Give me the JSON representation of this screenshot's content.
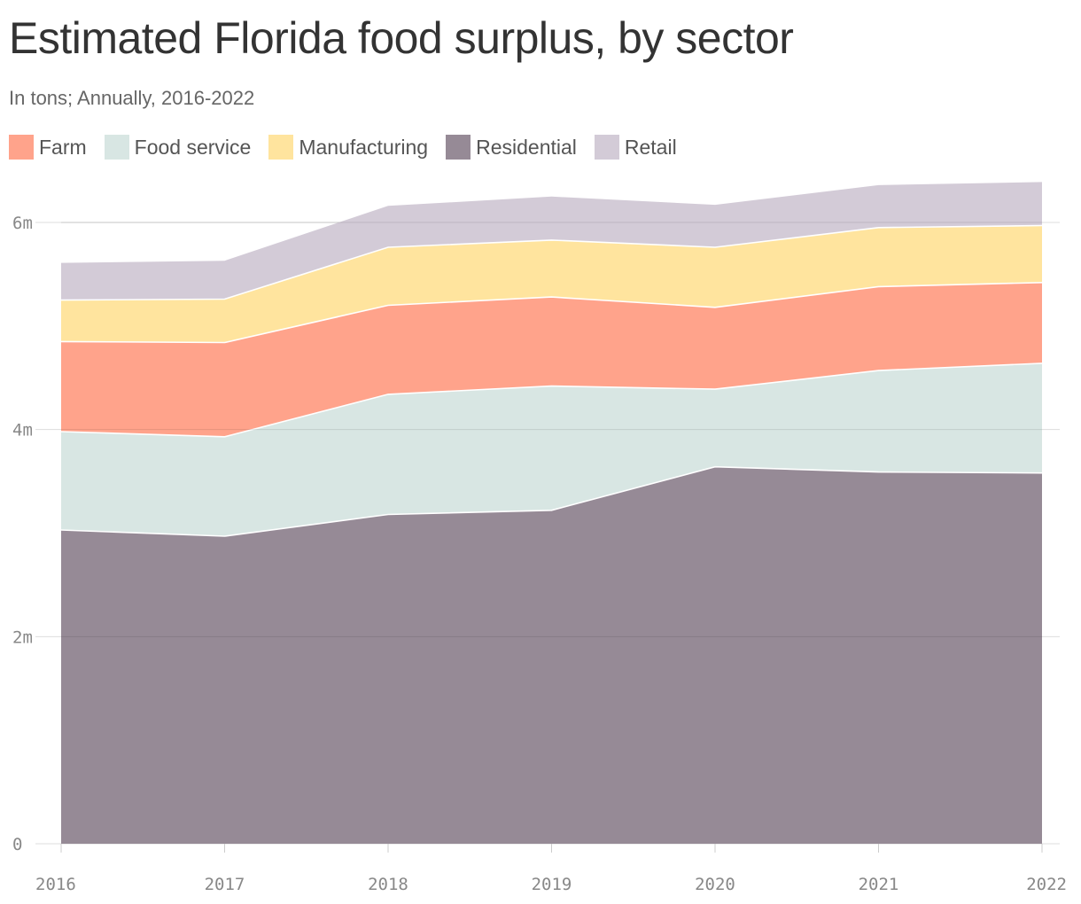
{
  "chart_data": {
    "type": "area",
    "stacked": true,
    "title": "Estimated Florida food surplus, by sector",
    "subtitle": "In tons; Annually, 2016-2022",
    "x": [
      "2016",
      "2017",
      "2018",
      "2019",
      "2020",
      "2021",
      "2022"
    ],
    "ylim": [
      0,
      6400000
    ],
    "y_ticks": [
      0,
      2000000,
      4000000,
      6000000
    ],
    "y_tick_labels": [
      "0",
      "2m",
      "4m",
      "6m"
    ],
    "grid": true,
    "legend_position": "top-left",
    "stack_order": [
      "Residential",
      "Food service",
      "Farm",
      "Manufacturing",
      "Retail"
    ],
    "series": [
      {
        "name": "Farm",
        "color": "#ffa38b",
        "values": [
          870000,
          910000,
          860000,
          860000,
          790000,
          810000,
          780000
        ]
      },
      {
        "name": "Food service",
        "color": "#d8e6e3",
        "values": [
          950000,
          960000,
          1160000,
          1200000,
          750000,
          980000,
          1060000
        ]
      },
      {
        "name": "Manufacturing",
        "color": "#ffe49e",
        "values": [
          400000,
          420000,
          560000,
          550000,
          580000,
          570000,
          550000
        ]
      },
      {
        "name": "Residential",
        "color": "#968a96",
        "values": [
          3030000,
          2970000,
          3180000,
          3220000,
          3640000,
          3590000,
          3580000
        ]
      },
      {
        "name": "Retail",
        "color": "#d3cbd7",
        "values": [
          360000,
          370000,
          400000,
          420000,
          410000,
          410000,
          420000
        ]
      }
    ]
  }
}
